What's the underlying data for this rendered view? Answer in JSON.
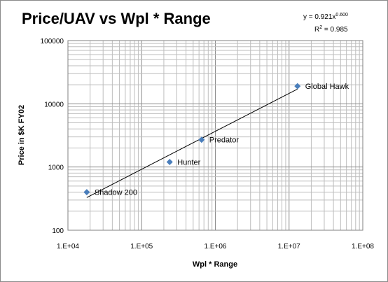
{
  "chart_data": {
    "type": "scatter",
    "title": "Price/UAV vs Wpl * Range",
    "xlabel": "Wpl * Range",
    "ylabel": "Price in $K FY02",
    "x_scale": "log",
    "y_scale": "log",
    "xlim": [
      10000,
      100000000
    ],
    "ylim": [
      100,
      100000
    ],
    "x_ticks": [
      "1.E+04",
      "1.E+05",
      "1.E+06",
      "1.E+07",
      "1.E+08"
    ],
    "y_ticks": [
      "100",
      "1000",
      "10000",
      "100000"
    ],
    "grid": true,
    "legend": "none",
    "marker_color": "#4a7ebb",
    "points": [
      {
        "label": "Shadow 200",
        "x": 18000,
        "y": 400
      },
      {
        "label": "Hunter",
        "x": 240000,
        "y": 1200
      },
      {
        "label": "Predator",
        "x": 650000,
        "y": 2700
      },
      {
        "label": "Global Hawk",
        "x": 13000000,
        "y": 19000
      }
    ],
    "trendline": {
      "equation_label": "y = 0.921x",
      "exponent": "0.600",
      "r2_label": "R",
      "r2_sup": "2",
      "r2_value": " = 0.985",
      "coef": 0.921,
      "power": 0.6,
      "x_range": [
        18000,
        13000000
      ]
    }
  }
}
